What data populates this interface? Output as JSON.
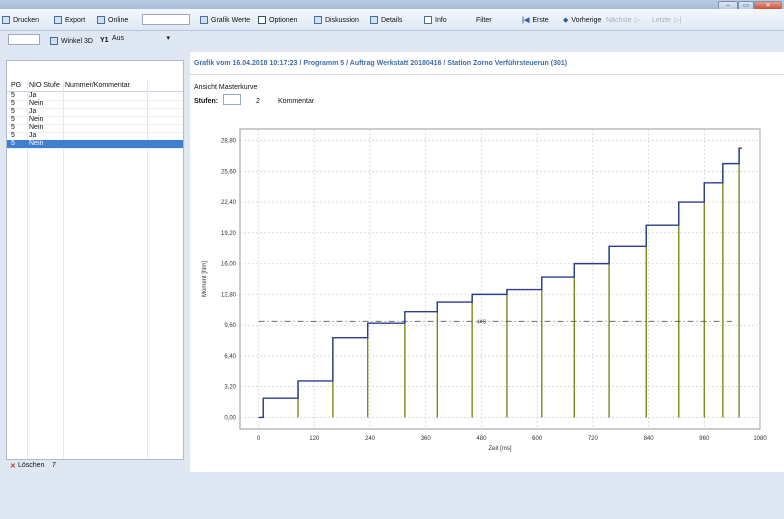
{
  "window": {
    "minimize": "–",
    "maximize": "▭",
    "close": "✕"
  },
  "toolbar": {
    "drucken": "Drucken",
    "export": "Export",
    "online": "Online",
    "grafik_werte": "Grafik Werte",
    "optionen": "Optionen",
    "diskussion": "Diskussion",
    "details": "Details",
    "info": "Info",
    "filter": "Filter",
    "erste": "Erste",
    "vorherige": "Vorherige",
    "naechste": "Nächste",
    "letzte": "Letzte"
  },
  "toolbar2": {
    "winkel_label": "Winkel 3D",
    "y1_label": "Y1",
    "y1_value": "Aus"
  },
  "table": {
    "headers": [
      "PG",
      "NIO Stufe",
      "Nummer/Kommentar"
    ],
    "rows": [
      {
        "pg": "5",
        "stufe": "Ja"
      },
      {
        "pg": "5",
        "stufe": "Nein"
      },
      {
        "pg": "5",
        "stufe": "Ja"
      },
      {
        "pg": "5",
        "stufe": "Nein"
      },
      {
        "pg": "5",
        "stufe": "Nein"
      },
      {
        "pg": "5",
        "stufe": "Ja"
      },
      {
        "pg": "5",
        "stufe": "Nein"
      }
    ],
    "selected_index": 6
  },
  "status": {
    "loeschen": "Löschen",
    "count": "7"
  },
  "main": {
    "caption": "Grafik vom 16.04.2018 10:17:23 / Programm 5 / Auftrag Werkstatt 20180416 / Station Zorno Verführsteuerun (301)",
    "ansicht": "Ansicht Masterkurve",
    "stufen_label": "Stufen:",
    "stufen_value": "2",
    "kommentar": "Kommentar"
  },
  "colors": {
    "curve": "#2b3d8f",
    "bars": "#7a8a1f",
    "threshold": "#555555",
    "grid": "#c8c8c8"
  },
  "chart_data": {
    "type": "line",
    "title": "",
    "xlabel": "Zeit [ms]",
    "ylabel": "Moment [Nm]",
    "xlim": [
      -40,
      1080
    ],
    "ylim": [
      -1.2,
      30
    ],
    "x_ticks": [
      0,
      120,
      240,
      360,
      480,
      600,
      720,
      840,
      960,
      1080
    ],
    "x_tick_labels": [
      "0",
      "120",
      "240",
      "360",
      "480",
      "600",
      "720",
      "840",
      "960",
      "1080"
    ],
    "y_ticks": [
      0,
      3.2,
      6.4,
      9.6,
      12.8,
      16,
      19.2,
      22.4,
      25.6,
      28.8
    ],
    "y_tick_labels": [
      "0,00",
      "3,20",
      "6,40",
      "9,60",
      "12,80",
      "16,00",
      "19,20",
      "22,40",
      "25,60",
      "28,80"
    ],
    "grid": true,
    "threshold": {
      "value": 10.0,
      "label": "4KS"
    },
    "step_x": [
      0,
      10,
      85,
      160,
      235,
      315,
      385,
      460,
      535,
      610,
      680,
      755,
      835,
      905,
      960,
      1000,
      1035
    ],
    "step_y": [
      0,
      2.0,
      3.8,
      8.3,
      9.8,
      11.0,
      12.0,
      12.8,
      13.3,
      14.6,
      16.0,
      17.8,
      20.0,
      22.4,
      24.4,
      26.4,
      28.0
    ]
  }
}
